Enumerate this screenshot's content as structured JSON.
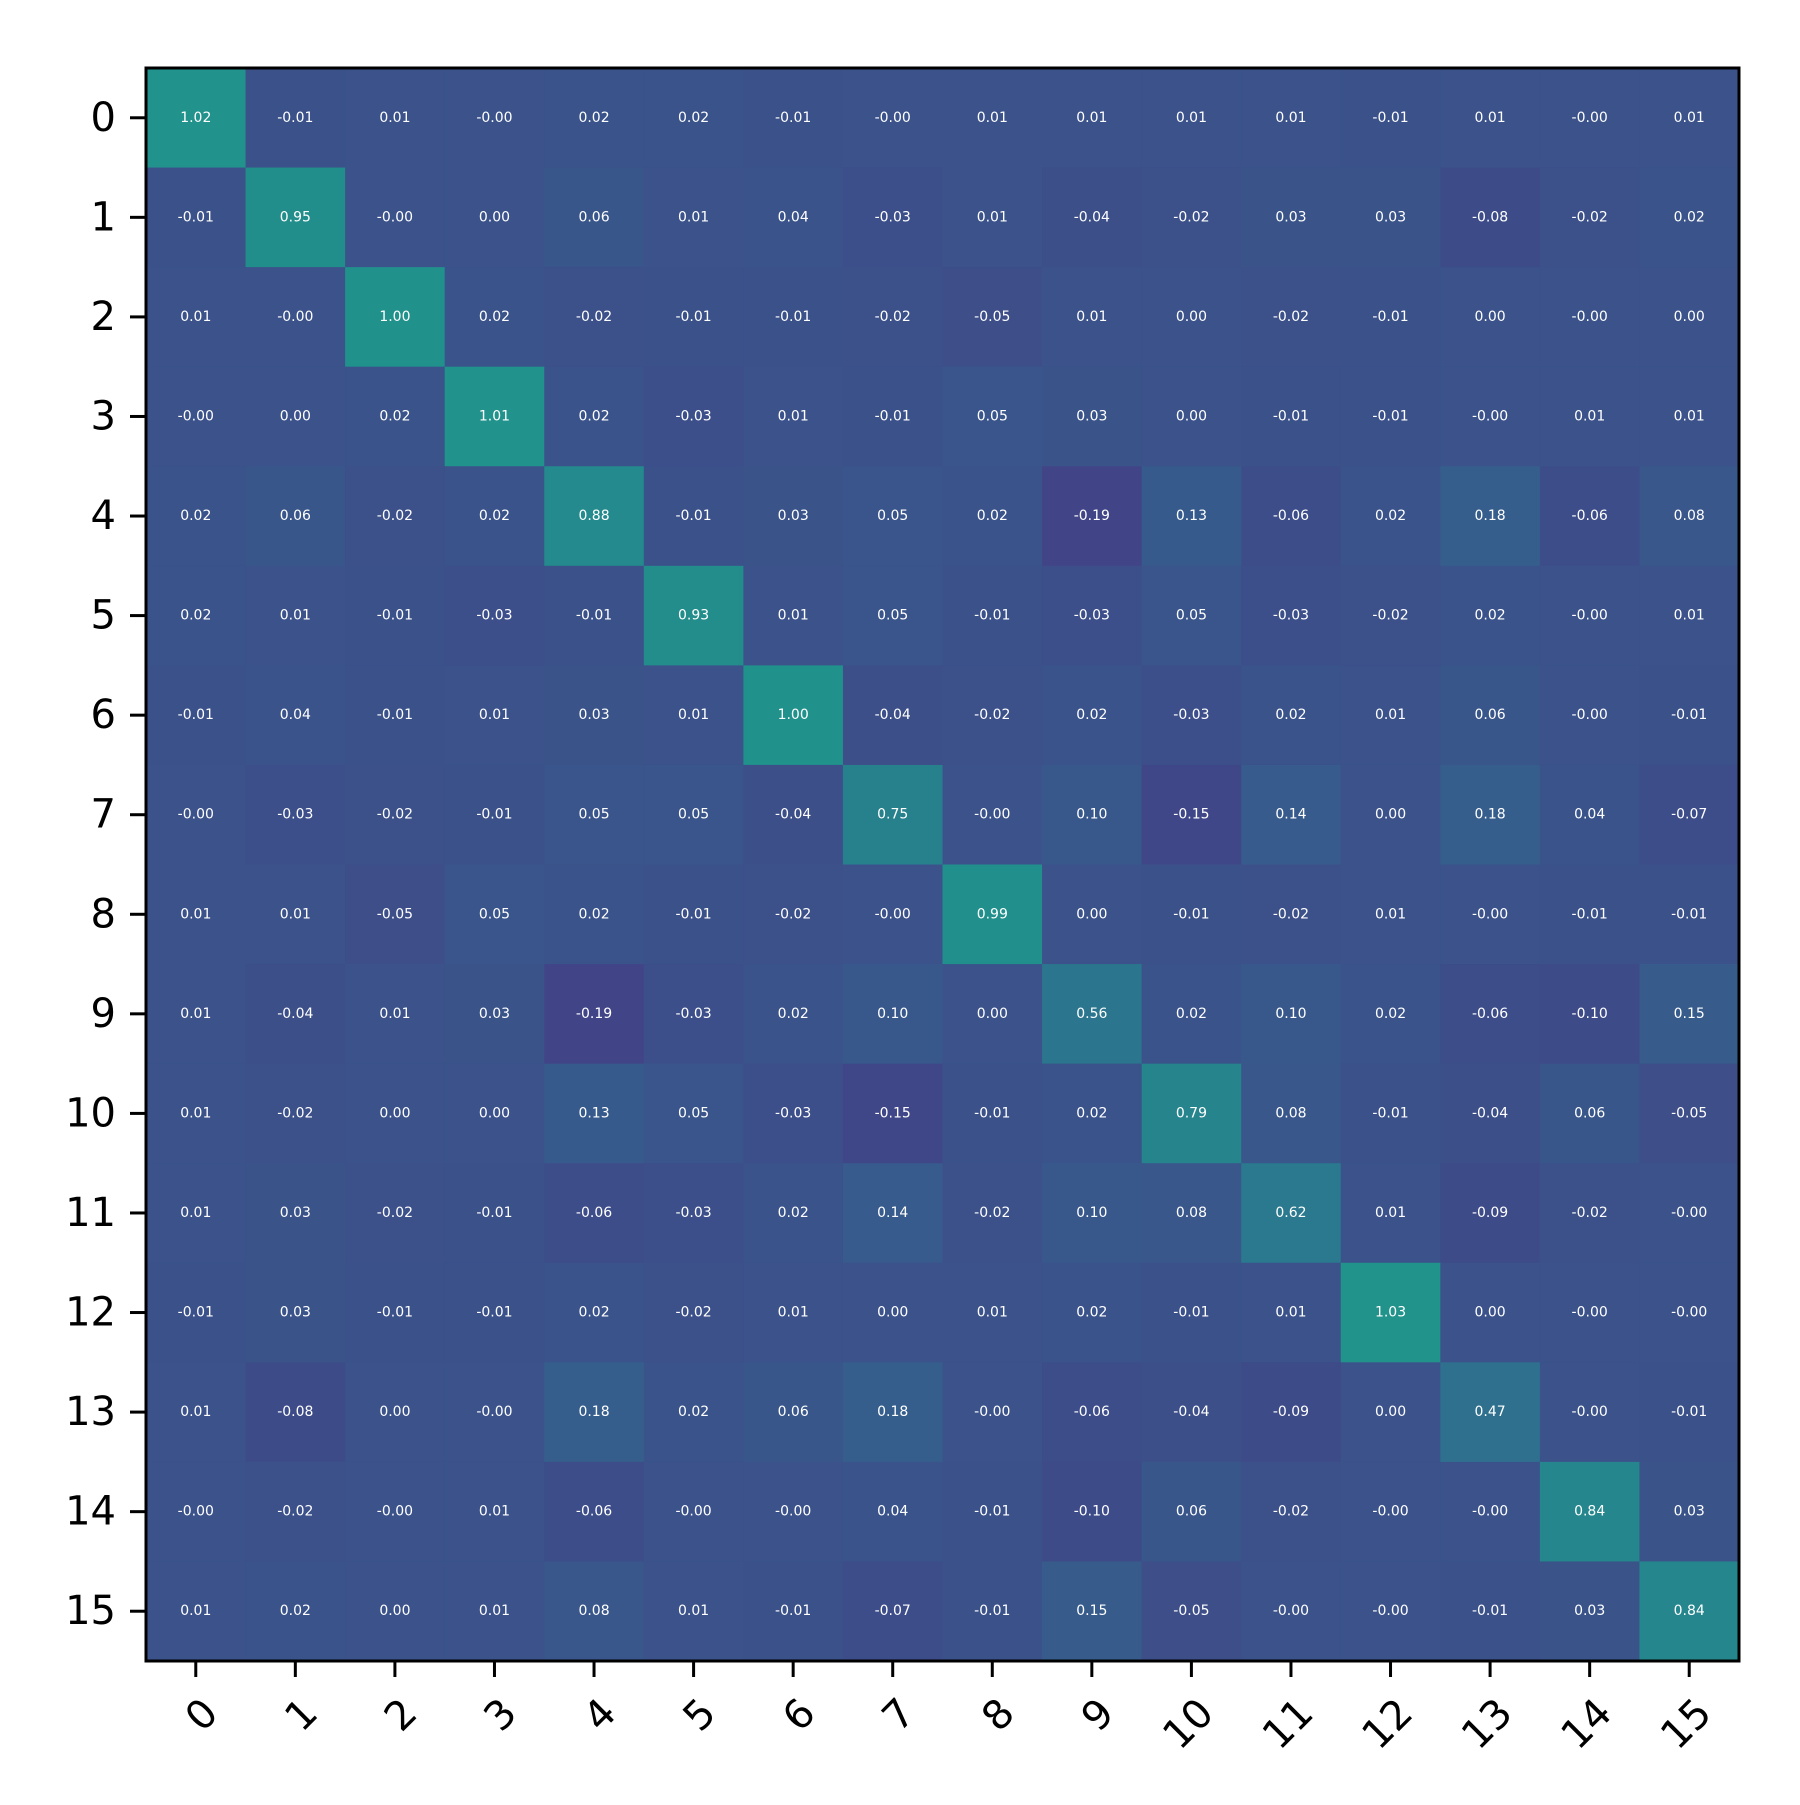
{
  "chart_data": {
    "type": "heatmap",
    "title": "",
    "xlabel": "",
    "ylabel": "",
    "colormap": "viridis",
    "vmin": -1.0,
    "vmax": 3.0,
    "grid": false,
    "x_categories": [
      "0",
      "1",
      "2",
      "3",
      "4",
      "5",
      "6",
      "7",
      "8",
      "9",
      "10",
      "11",
      "12",
      "13",
      "14",
      "15"
    ],
    "y_categories": [
      "0",
      "1",
      "2",
      "3",
      "4",
      "5",
      "6",
      "7",
      "8",
      "9",
      "10",
      "11",
      "12",
      "13",
      "14",
      "15"
    ],
    "values": [
      [
        "1.02",
        "-0.01",
        "0.01",
        "-0.00",
        "0.02",
        "0.02",
        "-0.01",
        "-0.00",
        "0.01",
        "0.01",
        "0.01",
        "0.01",
        "-0.01",
        "0.01",
        "-0.00",
        "0.01"
      ],
      [
        "-0.01",
        "0.95",
        "-0.00",
        "0.00",
        "0.06",
        "0.01",
        "0.04",
        "-0.03",
        "0.01",
        "-0.04",
        "-0.02",
        "0.03",
        "0.03",
        "-0.08",
        "-0.02",
        "0.02"
      ],
      [
        "0.01",
        "-0.00",
        "1.00",
        "0.02",
        "-0.02",
        "-0.01",
        "-0.01",
        "-0.02",
        "-0.05",
        "0.01",
        "0.00",
        "-0.02",
        "-0.01",
        "0.00",
        "-0.00",
        "0.00"
      ],
      [
        "-0.00",
        "0.00",
        "0.02",
        "1.01",
        "0.02",
        "-0.03",
        "0.01",
        "-0.01",
        "0.05",
        "0.03",
        "0.00",
        "-0.01",
        "-0.01",
        "-0.00",
        "0.01",
        "0.01"
      ],
      [
        "0.02",
        "0.06",
        "-0.02",
        "0.02",
        "0.88",
        "-0.01",
        "0.03",
        "0.05",
        "0.02",
        "-0.19",
        "0.13",
        "-0.06",
        "0.02",
        "0.18",
        "-0.06",
        "0.08"
      ],
      [
        "0.02",
        "0.01",
        "-0.01",
        "-0.03",
        "-0.01",
        "0.93",
        "0.01",
        "0.05",
        "-0.01",
        "-0.03",
        "0.05",
        "-0.03",
        "-0.02",
        "0.02",
        "-0.00",
        "0.01"
      ],
      [
        "-0.01",
        "0.04",
        "-0.01",
        "0.01",
        "0.03",
        "0.01",
        "1.00",
        "-0.04",
        "-0.02",
        "0.02",
        "-0.03",
        "0.02",
        "0.01",
        "0.06",
        "-0.00",
        "-0.01"
      ],
      [
        "-0.00",
        "-0.03",
        "-0.02",
        "-0.01",
        "0.05",
        "0.05",
        "-0.04",
        "0.75",
        "-0.00",
        "0.10",
        "-0.15",
        "0.14",
        "0.00",
        "0.18",
        "0.04",
        "-0.07"
      ],
      [
        "0.01",
        "0.01",
        "-0.05",
        "0.05",
        "0.02",
        "-0.01",
        "-0.02",
        "-0.00",
        "0.99",
        "0.00",
        "-0.01",
        "-0.02",
        "0.01",
        "-0.00",
        "-0.01",
        "-0.01"
      ],
      [
        "0.01",
        "-0.04",
        "0.01",
        "0.03",
        "-0.19",
        "-0.03",
        "0.02",
        "0.10",
        "0.00",
        "0.56",
        "0.02",
        "0.10",
        "0.02",
        "-0.06",
        "-0.10",
        "0.15"
      ],
      [
        "0.01",
        "-0.02",
        "0.00",
        "0.00",
        "0.13",
        "0.05",
        "-0.03",
        "-0.15",
        "-0.01",
        "0.02",
        "0.79",
        "0.08",
        "-0.01",
        "-0.04",
        "0.06",
        "-0.05"
      ],
      [
        "0.01",
        "0.03",
        "-0.02",
        "-0.01",
        "-0.06",
        "-0.03",
        "0.02",
        "0.14",
        "-0.02",
        "0.10",
        "0.08",
        "0.62",
        "0.01",
        "-0.09",
        "-0.02",
        "-0.00"
      ],
      [
        "-0.01",
        "0.03",
        "-0.01",
        "-0.01",
        "0.02",
        "-0.02",
        "0.01",
        "0.00",
        "0.01",
        "0.02",
        "-0.01",
        "0.01",
        "1.03",
        "0.00",
        "-0.00",
        "-0.00"
      ],
      [
        "0.01",
        "-0.08",
        "0.00",
        "-0.00",
        "0.18",
        "0.02",
        "0.06",
        "0.18",
        "-0.00",
        "-0.06",
        "-0.04",
        "-0.09",
        "0.00",
        "0.47",
        "-0.00",
        "-0.01"
      ],
      [
        "-0.00",
        "-0.02",
        "-0.00",
        "0.01",
        "-0.06",
        "-0.00",
        "-0.00",
        "0.04",
        "-0.01",
        "-0.10",
        "0.06",
        "-0.02",
        "-0.00",
        "-0.00",
        "0.84",
        "0.03"
      ],
      [
        "0.01",
        "0.02",
        "0.00",
        "0.01",
        "0.08",
        "0.01",
        "-0.01",
        "-0.07",
        "-0.01",
        "0.15",
        "-0.05",
        "-0.00",
        "-0.00",
        "-0.01",
        "0.03",
        "0.84"
      ]
    ]
  }
}
